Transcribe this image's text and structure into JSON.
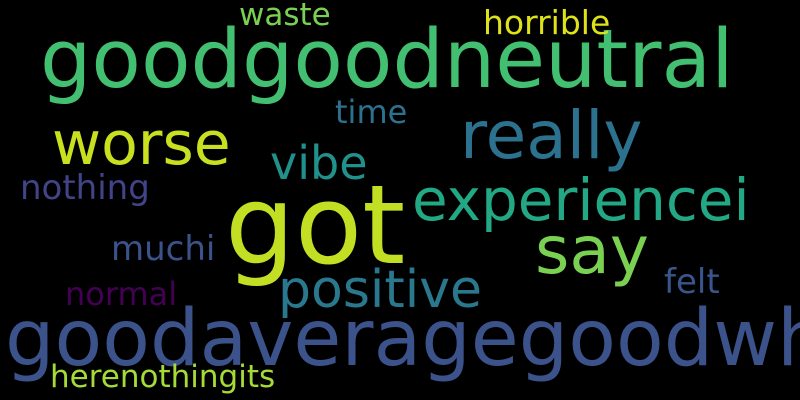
{
  "words": [
    {
      "id": "goodgoodneutral",
      "text": "goodgoodneutral",
      "color": "#43bf71"
    },
    {
      "id": "got",
      "text": "got",
      "color": "#c2df23"
    },
    {
      "id": "goodaveragegoodwhat",
      "text": "goodaveragegoodwhat",
      "color": "#3b528b"
    },
    {
      "id": "really",
      "text": "really",
      "color": "#2c728e"
    },
    {
      "id": "worse",
      "text": "worse",
      "color": "#c8e020"
    },
    {
      "id": "experiencei",
      "text": "experiencei",
      "color": "#22a884"
    },
    {
      "id": "say",
      "text": "say",
      "color": "#7ad151"
    },
    {
      "id": "positive",
      "text": "positive",
      "color": "#2a788e"
    },
    {
      "id": "vibe",
      "text": "vibe",
      "color": "#21918c"
    },
    {
      "id": "horrible",
      "text": "horrible",
      "color": "#dde318"
    },
    {
      "id": "waste",
      "text": "waste",
      "color": "#7ad151"
    },
    {
      "id": "time",
      "text": "time",
      "color": "#2c728e"
    },
    {
      "id": "nothing",
      "text": "nothing",
      "color": "#414487"
    },
    {
      "id": "muchi",
      "text": "muchi",
      "color": "#3b528b"
    },
    {
      "id": "normal",
      "text": "normal",
      "color": "#440154"
    },
    {
      "id": "felt",
      "text": "felt",
      "color": "#39568c"
    },
    {
      "id": "herenothingits",
      "text": "herenothingits",
      "color": "#a5db36"
    }
  ]
}
